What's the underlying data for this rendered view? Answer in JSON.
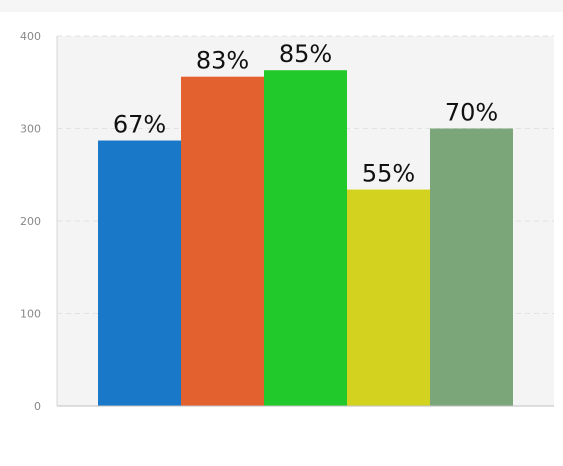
{
  "chart_data": {
    "type": "bar",
    "categories": [
      "",
      "",
      "",
      "",
      ""
    ],
    "values": [
      287,
      356,
      363,
      234,
      300
    ],
    "data_labels": [
      "67%",
      "83%",
      "85%",
      "55%",
      "70%"
    ],
    "colors": [
      "#1a78c8",
      "#e3612f",
      "#22c92a",
      "#d3d31f",
      "#7aa67a"
    ],
    "yticks": [
      "0",
      "100",
      "200",
      "300",
      "400"
    ],
    "ylim": [
      0,
      400
    ],
    "title": "",
    "xlabel": "",
    "ylabel": "",
    "grid": "horizontal dashed",
    "legend": "none"
  }
}
